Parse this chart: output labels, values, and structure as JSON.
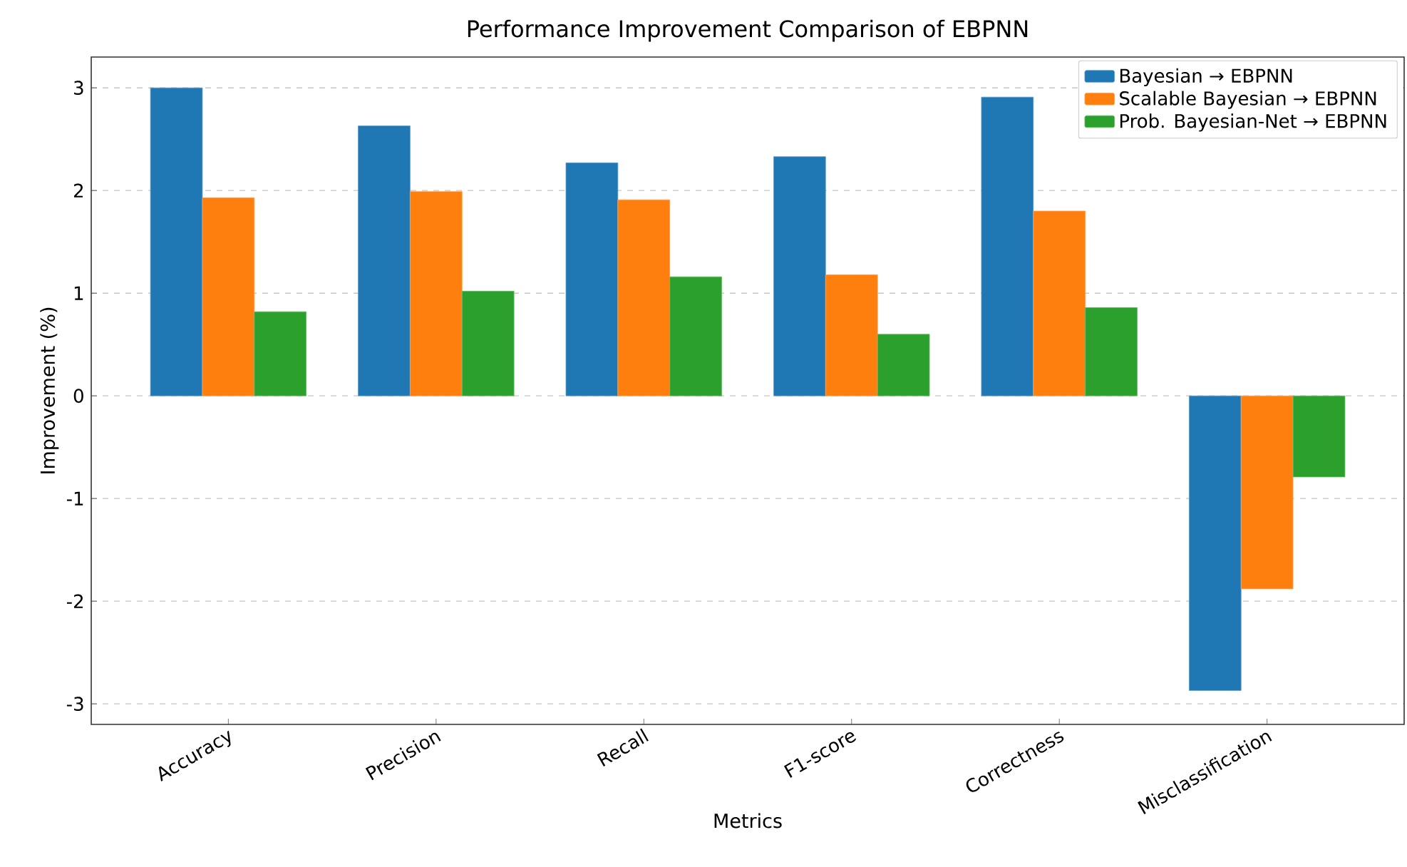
{
  "chart_data": {
    "type": "bar",
    "title": "Performance Improvement Comparison of EBPNN",
    "xlabel": "Metrics",
    "ylabel": "Improvement (%)",
    "categories": [
      "Accuracy",
      "Precision",
      "Recall",
      "F1-score",
      "Correctness",
      "Misclassification"
    ],
    "series": [
      {
        "name": "Bayesian → EBPNN",
        "color": "#1f77b4",
        "values": [
          3.0,
          2.63,
          2.27,
          2.33,
          2.91,
          -2.87
        ]
      },
      {
        "name": "Scalable Bayesian → EBPNN",
        "color": "#ff7f0e",
        "values": [
          1.93,
          1.99,
          1.91,
          1.18,
          1.8,
          -1.88
        ]
      },
      {
        "name": "Prob. Bayesian-Net → EBPNN",
        "color": "#2ca02c",
        "values": [
          0.82,
          1.02,
          1.16,
          0.6,
          0.86,
          -0.79
        ]
      }
    ],
    "ylim": [
      -3.2,
      3.3
    ],
    "yticks": [
      -3,
      -2,
      -1,
      0,
      1,
      2,
      3
    ],
    "grid": "y",
    "legend": "top right"
  }
}
